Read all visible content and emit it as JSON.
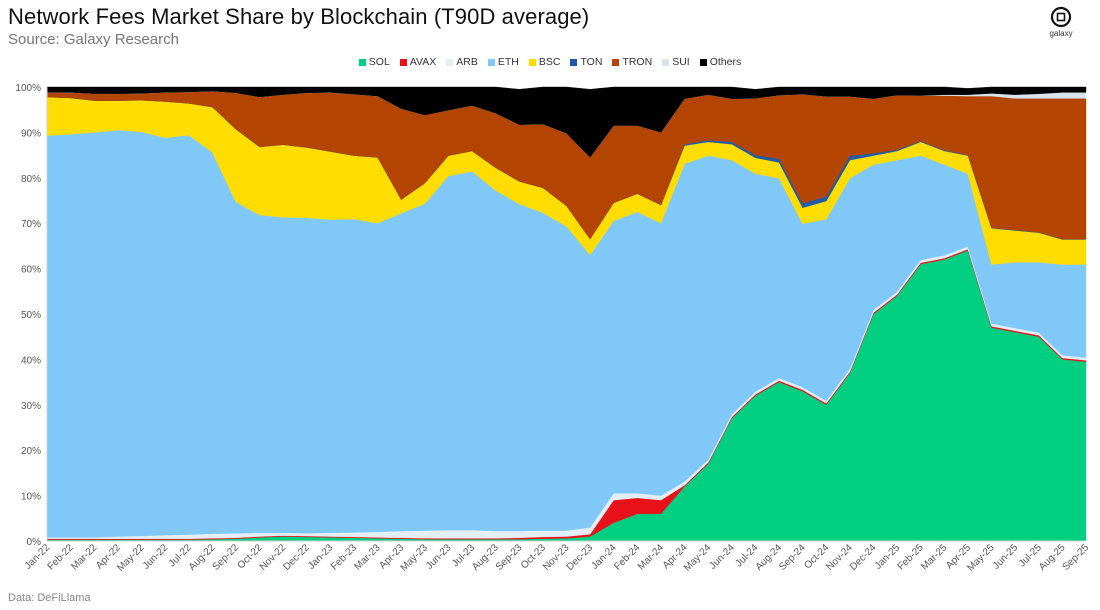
{
  "header": {
    "title": "Network Fees Market Share by Blockchain (T90D average)",
    "subtitle": "Source: Galaxy Research",
    "logo_text": "galaxy"
  },
  "footer": {
    "data_source": "Data: DeFiLlama"
  },
  "colors": {
    "SOL": "#00cf82",
    "AVAX": "#e8111a",
    "ARB": "#e3eef5",
    "ETH": "#80c8f7",
    "BSC": "#ffdd00",
    "TON": "#1f5aa8",
    "TRON": "#b34500",
    "SUI": "#d8e4ee",
    "Others": "#000000"
  },
  "chart_data": {
    "type": "area",
    "stacked": true,
    "title": "Network Fees Market Share by Blockchain (T90D average)",
    "legend_position": "top-center",
    "grid": false,
    "ylim": [
      0,
      100
    ],
    "y_ticks": [
      "0%",
      "10%",
      "20%",
      "30%",
      "40%",
      "50%",
      "60%",
      "70%",
      "80%",
      "90%",
      "100%"
    ],
    "categories": [
      "Jan-22",
      "Feb-22",
      "Mar-22",
      "Apr-22",
      "May-22",
      "Jun-22",
      "Jul-22",
      "Aug-22",
      "Sep-22",
      "Oct-22",
      "Nov-22",
      "Dec-22",
      "Jan-23",
      "Feb-23",
      "Mar-23",
      "Apr-23",
      "May-23",
      "Jun-23",
      "Jul-23",
      "Aug-23",
      "Sep-23",
      "Oct-23",
      "Nov-23",
      "Dec-23",
      "Jan-24",
      "Feb-24",
      "Mar-24",
      "Apr-24",
      "May-24",
      "Jun-24",
      "Jul-24",
      "Aug-24",
      "Sep-24",
      "Oct-24",
      "Nov-24",
      "Dec-24",
      "Jan-25",
      "Feb-25",
      "Mar-25",
      "Apr-25",
      "May-25",
      "Jun-25",
      "Jul-25",
      "Aug-25",
      "Sep-25"
    ],
    "series": [
      {
        "name": "SOL",
        "values": [
          0.3,
          0.3,
          0.3,
          0.3,
          0.3,
          0.3,
          0.3,
          0.4,
          0.5,
          0.8,
          1.0,
          0.9,
          0.8,
          0.7,
          0.6,
          0.5,
          0.4,
          0.4,
          0.4,
          0.4,
          0.4,
          0.5,
          0.6,
          1.0,
          4.0,
          6.0,
          6.0,
          12.0,
          17.0,
          27.0,
          32.0,
          35.0,
          33.0,
          30.0,
          37.0,
          50.0,
          54.0,
          61.0,
          62.0,
          64.0,
          47.0,
          46.0,
          45.0,
          40.0,
          39.5
        ]
      },
      {
        "name": "AVAX",
        "values": [
          0.2,
          0.2,
          0.2,
          0.2,
          0.2,
          0.2,
          0.2,
          0.2,
          0.2,
          0.2,
          0.2,
          0.2,
          0.2,
          0.2,
          0.2,
          0.2,
          0.2,
          0.2,
          0.2,
          0.2,
          0.3,
          0.4,
          0.4,
          0.5,
          5.0,
          3.5,
          3.0,
          0.3,
          0.3,
          0.3,
          0.3,
          0.3,
          0.3,
          0.3,
          0.3,
          0.3,
          0.3,
          0.3,
          0.3,
          0.3,
          0.3,
          0.3,
          0.3,
          0.3,
          0.3
        ]
      },
      {
        "name": "ARB",
        "values": [
          0.3,
          0.3,
          0.3,
          0.5,
          0.6,
          0.8,
          0.9,
          1.0,
          1.0,
          0.8,
          0.6,
          0.6,
          0.8,
          1.0,
          1.2,
          1.5,
          1.7,
          1.8,
          1.8,
          1.6,
          1.5,
          1.4,
          1.3,
          1.5,
          1.5,
          1.0,
          1.0,
          0.8,
          0.6,
          0.6,
          0.6,
          0.6,
          0.6,
          0.6,
          0.6,
          0.6,
          0.6,
          0.6,
          0.6,
          0.6,
          0.6,
          0.6,
          0.6,
          0.6,
          0.6
        ]
      },
      {
        "name": "ETH",
        "values": [
          88.5,
          88.8,
          89.2,
          89.5,
          89.0,
          87.5,
          88.0,
          84.0,
          73.0,
          70.0,
          69.5,
          69.5,
          69.0,
          69.0,
          68.0,
          70.0,
          72.0,
          78.0,
          79.0,
          75.0,
          72.0,
          70.0,
          67.0,
          60.0,
          60.0,
          62.0,
          60.0,
          70.0,
          67.0,
          56.0,
          48.0,
          44.0,
          36.0,
          40.0,
          42.0,
          32.0,
          29.0,
          23.0,
          20.0,
          16.0,
          13.0,
          14.5,
          15.5,
          20.0,
          20.5
        ]
      },
      {
        "name": "BSC",
        "values": [
          8.5,
          8.0,
          7.0,
          6.5,
          7.0,
          8.0,
          7.0,
          10.0,
          16.0,
          15.0,
          16.0,
          15.5,
          15.0,
          14.0,
          14.5,
          3.0,
          4.5,
          4.5,
          4.5,
          5.0,
          5.0,
          5.5,
          4.5,
          3.5,
          4.0,
          4.0,
          4.0,
          4.0,
          3.0,
          3.5,
          3.5,
          3.5,
          3.5,
          4.0,
          4.0,
          2.0,
          2.0,
          3.0,
          3.0,
          4.0,
          8.0,
          7.0,
          6.5,
          5.5,
          5.5
        ]
      },
      {
        "name": "TON",
        "values": [
          0,
          0,
          0,
          0,
          0,
          0,
          0,
          0,
          0,
          0,
          0,
          0,
          0,
          0,
          0,
          0,
          0,
          0,
          0,
          0,
          0,
          0,
          0,
          0,
          0,
          0,
          0,
          0.3,
          0.4,
          0.5,
          0.6,
          0.8,
          1.0,
          1.0,
          1.0,
          0.5,
          0.3,
          0.2,
          0.2,
          0.1,
          0.1,
          0.1,
          0.1,
          0.1,
          0.1
        ]
      },
      {
        "name": "TRON",
        "values": [
          1.0,
          1.2,
          1.5,
          1.5,
          1.5,
          2.0,
          2.5,
          3.5,
          8.0,
          11.0,
          11.0,
          12.0,
          13.0,
          13.5,
          13.5,
          20.0,
          15.0,
          10.0,
          10.0,
          12.0,
          12.5,
          14.0,
          16.0,
          18.0,
          17.0,
          15.0,
          16.0,
          10.0,
          10.0,
          9.5,
          12.5,
          14.0,
          24.0,
          22.0,
          13.0,
          12.0,
          12.0,
          10.0,
          12.0,
          13.0,
          29.0,
          29.0,
          29.5,
          31.0,
          31.0
        ]
      },
      {
        "name": "SUI",
        "values": [
          0,
          0,
          0,
          0,
          0,
          0,
          0,
          0,
          0,
          0,
          0,
          0,
          0,
          0,
          0,
          0,
          0,
          0,
          0,
          0,
          0,
          0,
          0,
          0,
          0,
          0,
          0,
          0,
          0,
          0,
          0,
          0,
          0,
          0,
          0,
          0,
          0,
          0,
          0.2,
          0.3,
          0.6,
          0.8,
          1.0,
          1.3,
          1.3
        ]
      },
      {
        "name": "Others",
        "values": [
          1.2,
          1.2,
          1.5,
          1.5,
          1.4,
          1.2,
          1.1,
          0.9,
          1.3,
          2.2,
          1.7,
          1.3,
          1.2,
          1.6,
          2.0,
          4.8,
          6.2,
          5.1,
          4.1,
          5.8,
          7.8,
          8.2,
          10.2,
          15.0,
          8.5,
          8.5,
          10.0,
          2.6,
          1.7,
          2.6,
          2.0,
          1.8,
          1.6,
          2.1,
          2.1,
          2.6,
          1.8,
          1.9,
          1.7,
          1.4,
          1.4,
          1.7,
          1.5,
          1.2,
          1.2
        ]
      }
    ]
  }
}
